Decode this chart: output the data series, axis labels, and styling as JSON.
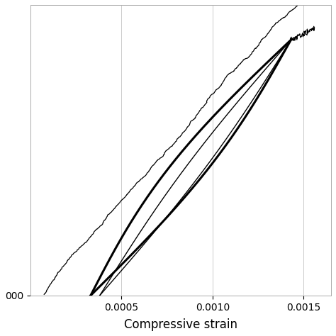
{
  "xlabel": "Compressive strain",
  "xlim": [
    0.0,
    0.00165
  ],
  "ylim": [
    0.0,
    1.0
  ],
  "xticks": [
    0.0005,
    0.001,
    0.0015
  ],
  "xtick_labels": [
    "0.0005",
    "0.0010",
    "0.0015"
  ],
  "ytick_val": 0.0,
  "ytick_label": "000",
  "grid_color": "#cccccc",
  "background_color": "#ffffff",
  "line_color": "#000000",
  "xlabel_fontsize": 12,
  "tick_fontsize": 10,
  "noise_seed": 7
}
